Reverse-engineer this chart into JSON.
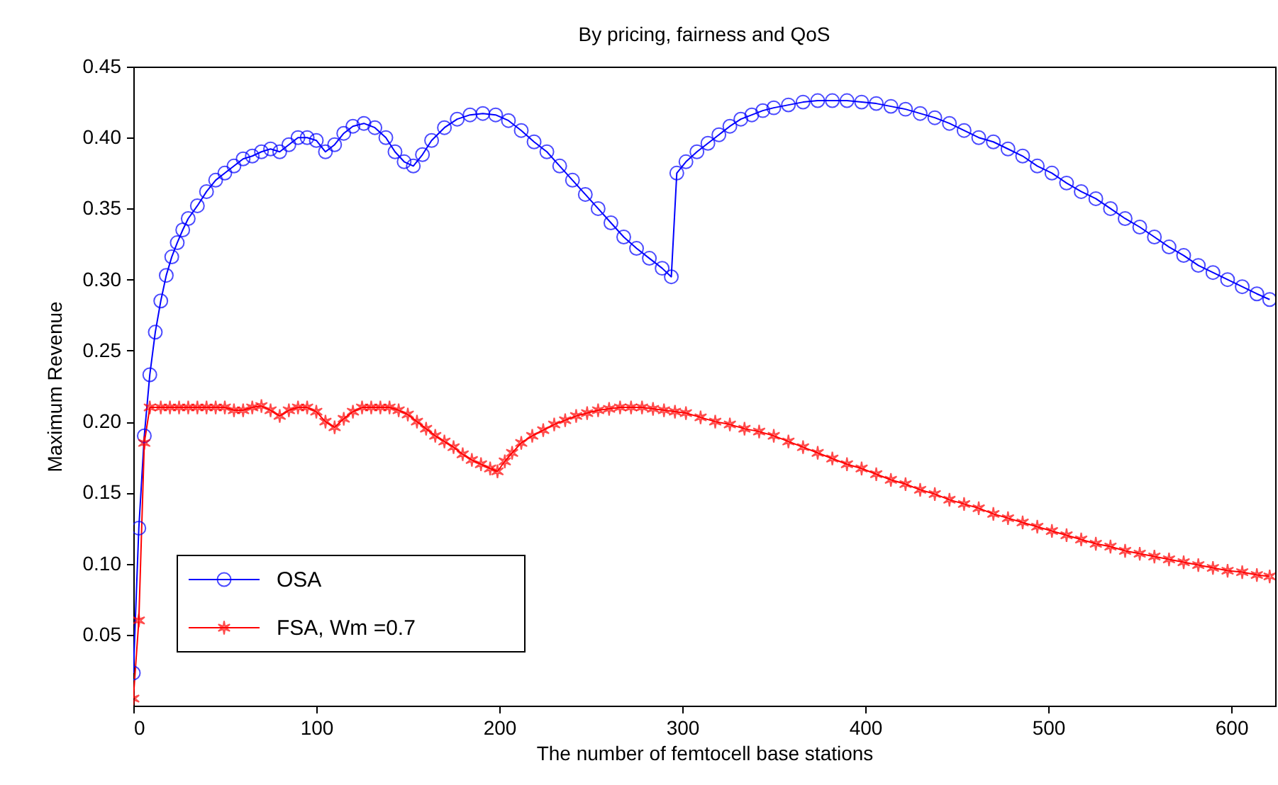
{
  "chart_data": {
    "type": "line",
    "title": "By pricing, fairness and QoS",
    "xlabel": "The number of femtocell base stations",
    "ylabel": "Maximum Revenue",
    "xlim": [
      0,
      624
    ],
    "xticks": [
      0,
      100,
      200,
      300,
      400,
      500,
      600
    ],
    "ylim": [
      0,
      0.45
    ],
    "yticks": [
      0.05,
      {
        "value": 0.1,
        "label": "0.10"
      },
      0.15,
      {
        "value": 0.2,
        "label": "0.20"
      },
      0.25,
      {
        "value": 0.3,
        "label": "0.30"
      },
      0.35,
      {
        "value": 0.4,
        "label": "0.40"
      },
      0.45
    ],
    "grid": false,
    "legend": "bottom left",
    "series": [
      {
        "name": "OSA",
        "color": "#0000ff",
        "marker": "circle",
        "x": [
          0,
          3,
          6,
          9,
          12,
          15,
          18,
          21,
          24,
          27,
          30,
          35,
          40,
          45,
          50,
          55,
          60,
          65,
          70,
          75,
          80,
          85,
          90,
          95,
          100,
          105,
          110,
          115,
          120,
          126,
          132,
          138,
          143,
          148,
          153,
          158,
          163,
          170,
          177,
          184,
          191,
          198,
          205,
          212,
          219,
          226,
          233,
          240,
          247,
          254,
          261,
          268,
          275,
          282,
          289,
          294,
          297,
          302,
          308,
          314,
          320,
          326,
          332,
          338,
          344,
          350,
          358,
          366,
          374,
          382,
          390,
          398,
          406,
          414,
          422,
          430,
          438,
          446,
          454,
          462,
          470,
          478,
          486,
          494,
          502,
          510,
          518,
          526,
          534,
          542,
          550,
          558,
          566,
          574,
          582,
          590,
          598,
          606,
          614,
          621
        ],
        "values": [
          0.023,
          0.125,
          0.19,
          0.233,
          0.263,
          0.285,
          0.303,
          0.316,
          0.326,
          0.335,
          0.343,
          0.352,
          0.362,
          0.37,
          0.375,
          0.38,
          0.385,
          0.387,
          0.39,
          0.392,
          0.39,
          0.395,
          0.4,
          0.4,
          0.398,
          0.39,
          0.395,
          0.403,
          0.408,
          0.41,
          0.407,
          0.4,
          0.39,
          0.383,
          0.38,
          0.388,
          0.398,
          0.407,
          0.413,
          0.416,
          0.417,
          0.416,
          0.412,
          0.405,
          0.397,
          0.39,
          0.38,
          0.37,
          0.36,
          0.35,
          0.34,
          0.33,
          0.322,
          0.315,
          0.308,
          0.302,
          0.375,
          0.383,
          0.39,
          0.396,
          0.402,
          0.408,
          0.413,
          0.416,
          0.419,
          0.421,
          0.423,
          0.425,
          0.426,
          0.426,
          0.426,
          0.425,
          0.424,
          0.422,
          0.42,
          0.417,
          0.414,
          0.41,
          0.405,
          0.4,
          0.397,
          0.392,
          0.387,
          0.38,
          0.375,
          0.368,
          0.362,
          0.357,
          0.35,
          0.343,
          0.337,
          0.33,
          0.323,
          0.317,
          0.31,
          0.305,
          0.3,
          0.295,
          0.29,
          0.286
        ]
      },
      {
        "name": "FSA, Wm =0.7",
        "color": "#ff0000",
        "marker": "cross",
        "x": [
          0,
          3,
          6,
          9,
          15,
          20,
          25,
          30,
          35,
          40,
          45,
          50,
          55,
          60,
          65,
          70,
          75,
          80,
          85,
          90,
          95,
          100,
          105,
          110,
          115,
          120,
          125,
          130,
          135,
          140,
          145,
          150,
          155,
          160,
          165,
          170,
          175,
          180,
          185,
          190,
          195,
          199,
          203,
          207,
          212,
          218,
          224,
          230,
          236,
          242,
          248,
          254,
          260,
          266,
          272,
          278,
          284,
          290,
          296,
          302,
          310,
          318,
          326,
          334,
          342,
          350,
          358,
          366,
          374,
          382,
          390,
          398,
          406,
          414,
          422,
          430,
          438,
          446,
          454,
          462,
          470,
          478,
          486,
          494,
          502,
          510,
          518,
          526,
          534,
          542,
          550,
          558,
          566,
          574,
          582,
          590,
          598,
          606,
          614,
          621
        ],
        "values": [
          0.005,
          0.06,
          0.185,
          0.21,
          0.21,
          0.21,
          0.21,
          0.21,
          0.21,
          0.21,
          0.21,
          0.21,
          0.208,
          0.208,
          0.21,
          0.211,
          0.208,
          0.204,
          0.208,
          0.21,
          0.21,
          0.207,
          0.2,
          0.196,
          0.202,
          0.207,
          0.21,
          0.21,
          0.21,
          0.21,
          0.208,
          0.205,
          0.2,
          0.195,
          0.19,
          0.186,
          0.182,
          0.177,
          0.173,
          0.17,
          0.167,
          0.165,
          0.172,
          0.178,
          0.185,
          0.19,
          0.194,
          0.198,
          0.201,
          0.204,
          0.206,
          0.208,
          0.209,
          0.21,
          0.21,
          0.21,
          0.209,
          0.208,
          0.207,
          0.206,
          0.203,
          0.2,
          0.198,
          0.195,
          0.193,
          0.19,
          0.186,
          0.182,
          0.178,
          0.174,
          0.17,
          0.167,
          0.163,
          0.159,
          0.156,
          0.152,
          0.149,
          0.145,
          0.142,
          0.139,
          0.135,
          0.132,
          0.129,
          0.126,
          0.123,
          0.12,
          0.117,
          0.114,
          0.112,
          0.109,
          0.107,
          0.105,
          0.103,
          0.101,
          0.099,
          0.097,
          0.095,
          0.094,
          0.092,
          0.091
        ]
      }
    ]
  }
}
